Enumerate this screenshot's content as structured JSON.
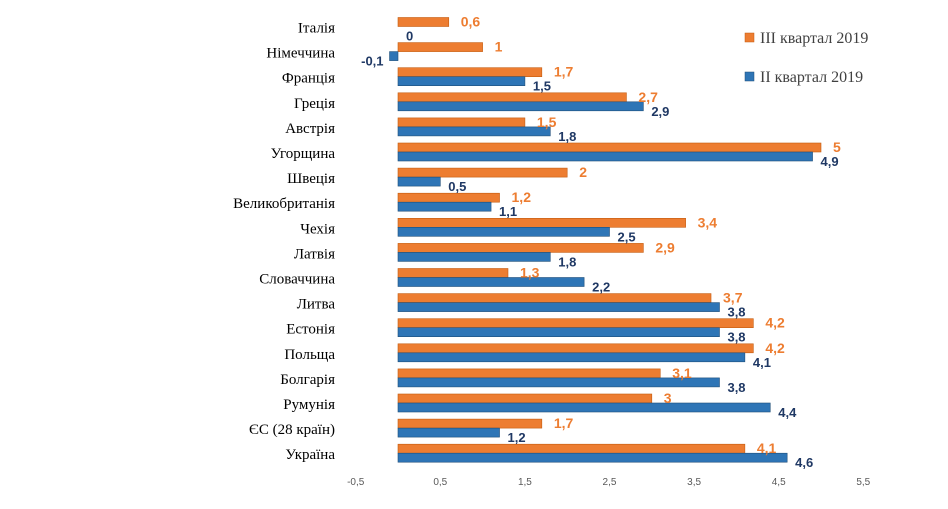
{
  "chart_data": {
    "type": "bar",
    "orientation": "horizontal",
    "categories": [
      "Італія",
      "Німеччина",
      "Франція",
      "Греція",
      "Австрія",
      "Угорщина",
      "Швеція",
      "Великобританія",
      "Чехія",
      "Латвія",
      "Словаччина",
      "Литва",
      "Естонія",
      "Польща",
      "Болгарія",
      "Румунія",
      "ЄС (28 країн)",
      "Україна"
    ],
    "series": [
      {
        "name": "ІІІ квартал 2019",
        "color": "#ED7D31",
        "values": [
          0.6,
          1,
          1.7,
          2.7,
          1.5,
          5,
          2,
          1.2,
          3.4,
          2.9,
          1.3,
          3.7,
          4.2,
          4.2,
          3.1,
          3,
          1.7,
          4.1
        ],
        "labels": [
          "0,6",
          "1",
          "1,7",
          "2,7",
          "1,5",
          "5",
          "2",
          "1,2",
          "3,4",
          "2,9",
          "1,3",
          "3,7",
          "4,2",
          "4,2",
          "3,1",
          "3",
          "1,7",
          "4,1"
        ]
      },
      {
        "name": "ІІ квартал 2019",
        "color": "#2E75B6",
        "values": [
          0,
          -0.1,
          1.5,
          2.9,
          1.8,
          4.9,
          0.5,
          1.1,
          2.5,
          1.8,
          2.2,
          3.8,
          3.8,
          4.1,
          3.8,
          4.4,
          1.2,
          4.6
        ],
        "labels": [
          "0",
          "-0,1",
          "1,5",
          "2,9",
          "1,8",
          "4,9",
          "0,5",
          "1,1",
          "2,5",
          "1,8",
          "2,2",
          "3,8",
          "3,8",
          "4,1",
          "3,8",
          "4,4",
          "1,2",
          "4,6"
        ]
      }
    ],
    "x_ticks": [
      -0.5,
      0.5,
      1.5,
      2.5,
      3.5,
      4.5,
      5.5
    ],
    "x_tick_labels": [
      "-0,5",
      "0,5",
      "1,5",
      "2,5",
      "3,5",
      "4,5",
      "5,5"
    ],
    "xlim": [
      -0.5,
      5.5
    ],
    "grid": false,
    "legend_position": "top-right"
  }
}
